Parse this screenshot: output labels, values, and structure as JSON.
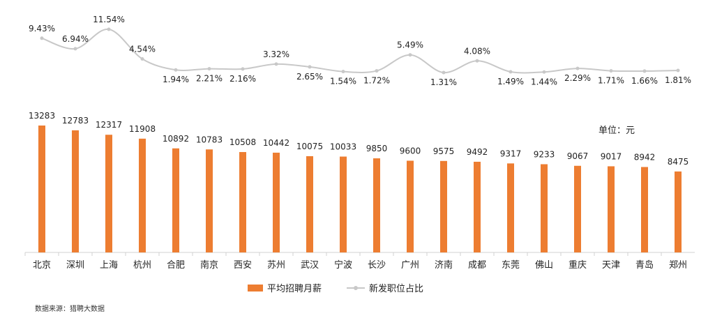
{
  "unit_label": "单位：元",
  "source": "数据来源：猎聘大数据",
  "legend": {
    "bar": "平均招聘月薪",
    "line": "新发职位占比"
  },
  "colors": {
    "bar": "#ED7D31",
    "line": "#C8C8C8",
    "axis": "#D0D0D0",
    "text": "#222222"
  },
  "chart_data": {
    "type": "bar",
    "categories": [
      "北京",
      "深圳",
      "上海",
      "杭州",
      "合肥",
      "南京",
      "西安",
      "苏州",
      "武汉",
      "宁波",
      "长沙",
      "广州",
      "济南",
      "成都",
      "东莞",
      "佛山",
      "重庆",
      "天津",
      "青岛",
      "郑州"
    ],
    "series": [
      {
        "name": "平均招聘月薪",
        "type": "bar",
        "values": [
          13283,
          12783,
          12317,
          11908,
          10892,
          10783,
          10508,
          10442,
          10075,
          10033,
          9850,
          9600,
          9575,
          9492,
          9317,
          9233,
          9067,
          9017,
          8942,
          8475
        ],
        "labels": [
          "13283",
          "12783",
          "12317",
          "11908",
          "10892",
          "10783",
          "10508",
          "10442",
          "10075",
          "10033",
          "9850",
          "9600",
          "9575",
          "9492",
          "9317",
          "9233",
          "9067",
          "9017",
          "8942",
          "8475"
        ]
      },
      {
        "name": "新发职位占比",
        "type": "line",
        "values": [
          9.43,
          6.94,
          11.54,
          4.54,
          1.94,
          2.21,
          2.16,
          3.32,
          2.65,
          1.54,
          1.72,
          5.49,
          1.31,
          4.08,
          1.49,
          1.44,
          2.29,
          1.71,
          1.66,
          1.81
        ],
        "labels": [
          "9.43%",
          "6.94%",
          "11.54%",
          "4.54%",
          "1.94%",
          "2.21%",
          "2.16%",
          "3.32%",
          "2.65%",
          "1.54%",
          "1.72%",
          "5.49%",
          "1.31%",
          "4.08%",
          "1.49%",
          "1.44%",
          "2.29%",
          "1.71%",
          "1.66%",
          "1.81%"
        ]
      }
    ],
    "ylim": [
      0,
      14000
    ],
    "ylim_line": [
      0,
      12
    ],
    "ylabel": "",
    "legend_position": "bottom"
  }
}
